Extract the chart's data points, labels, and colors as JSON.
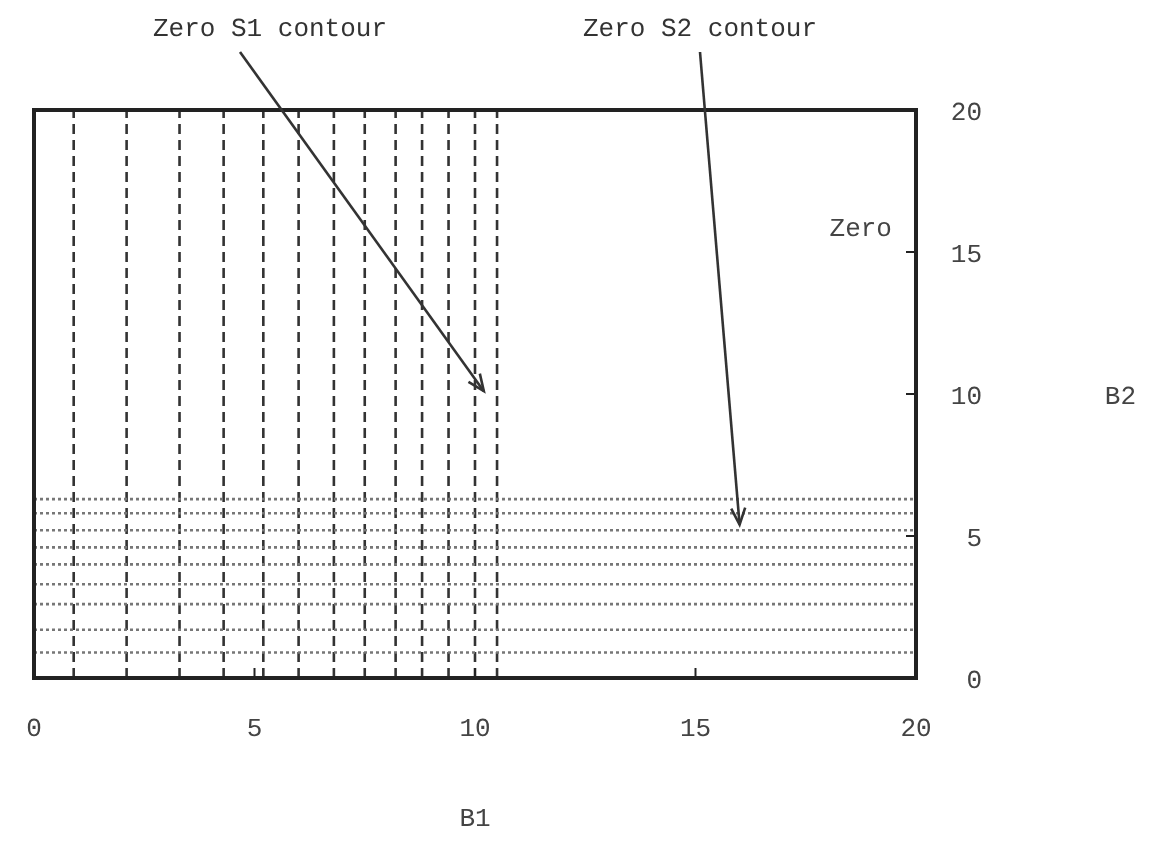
{
  "chart_data": {
    "type": "line",
    "xlabel": "B1",
    "ylabel": "B2",
    "xlim": [
      0,
      20
    ],
    "ylim": [
      0,
      20
    ],
    "xticks": [
      0,
      5,
      10,
      15,
      20
    ],
    "yticks": [
      0,
      5,
      10,
      15,
      20
    ],
    "grid": false,
    "marker": "none",
    "tick_labels": "xy",
    "annotations": [
      {
        "text": "Zero S1 contour",
        "x": 10.2,
        "y": 10.1
      },
      {
        "text": "Zero S2 contour",
        "x": 16,
        "y": 5.4
      },
      "Zero"
    ],
    "series": [
      {
        "color": "#333333",
        "line_style": "dashed",
        "x": [
          0.9,
          0.9
        ],
        "values": [
          0,
          20
        ]
      },
      {
        "color": "#333333",
        "line_style": "dashed",
        "x": [
          2.1,
          2.1
        ],
        "values": [
          0,
          20
        ]
      },
      {
        "color": "#333333",
        "line_style": "dashed",
        "x": [
          3.3,
          3.3
        ],
        "values": [
          0,
          20
        ]
      },
      {
        "color": "#333333",
        "line_style": "dashed",
        "x": [
          4.3,
          4.3
        ],
        "values": [
          0,
          20
        ]
      },
      {
        "color": "#333333",
        "line_style": "dashed",
        "x": [
          5.2,
          5.2
        ],
        "values": [
          0,
          20
        ]
      },
      {
        "color": "#333333",
        "line_style": "dashed",
        "x": [
          6.0,
          6.0
        ],
        "values": [
          0,
          20
        ]
      },
      {
        "color": "#333333",
        "line_style": "dashed",
        "x": [
          6.8,
          6.8
        ],
        "values": [
          0,
          20
        ]
      },
      {
        "color": "#333333",
        "line_style": "dashed",
        "x": [
          7.5,
          7.5
        ],
        "values": [
          0,
          20
        ]
      },
      {
        "color": "#333333",
        "line_style": "dashed",
        "x": [
          8.2,
          8.2
        ],
        "values": [
          0,
          20
        ]
      },
      {
        "color": "#333333",
        "line_style": "dashed",
        "x": [
          8.8,
          8.8
        ],
        "values": [
          0,
          20
        ]
      },
      {
        "color": "#333333",
        "line_style": "dashed",
        "x": [
          9.4,
          9.4
        ],
        "values": [
          0,
          20
        ]
      },
      {
        "color": "#333333",
        "line_style": "dashed",
        "x": [
          10.0,
          10.0
        ],
        "values": [
          0,
          20
        ]
      },
      {
        "color": "#333333",
        "line_style": "dashed",
        "x": [
          10.5,
          10.5
        ],
        "values": [
          0,
          20
        ]
      },
      {
        "color": "#777777",
        "line_style": "dotted",
        "x": [
          0,
          20
        ],
        "values": [
          6.3,
          6.3
        ]
      },
      {
        "color": "#777777",
        "line_style": "dotted",
        "x": [
          0,
          20
        ],
        "values": [
          5.8,
          5.8
        ]
      },
      {
        "color": "#777777",
        "line_style": "dotted",
        "x": [
          0,
          20
        ],
        "values": [
          5.2,
          5.2
        ]
      },
      {
        "color": "#777777",
        "line_style": "dotted",
        "x": [
          0,
          20
        ],
        "values": [
          4.6,
          4.6
        ]
      },
      {
        "color": "#777777",
        "line_style": "dotted",
        "x": [
          0,
          20
        ],
        "values": [
          4.0,
          4.0
        ]
      },
      {
        "color": "#777777",
        "line_style": "dotted",
        "x": [
          0,
          20
        ],
        "values": [
          3.3,
          3.3
        ]
      },
      {
        "color": "#777777",
        "line_style": "dotted",
        "x": [
          0,
          20
        ],
        "values": [
          2.6,
          2.6
        ]
      },
      {
        "color": "#777777",
        "line_style": "dotted",
        "x": [
          0,
          20
        ],
        "values": [
          1.7,
          1.7
        ]
      },
      {
        "color": "#777777",
        "line_style": "dotted",
        "x": [
          0,
          20
        ],
        "values": [
          0.9,
          0.9
        ]
      }
    ]
  }
}
